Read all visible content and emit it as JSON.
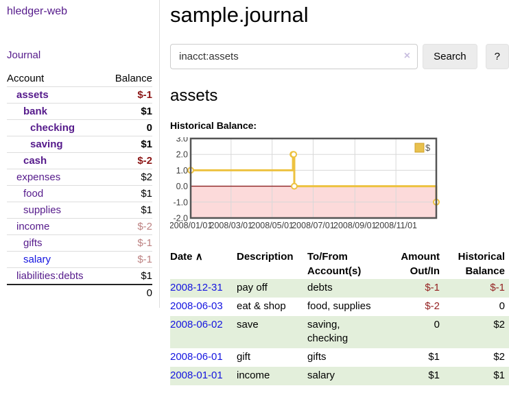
{
  "sidebar": {
    "app_title": "hledger-web",
    "nav": {
      "journal": "Journal"
    },
    "table": {
      "account_header": "Account",
      "balance_header": "Balance",
      "accounts": [
        {
          "name": "assets",
          "balance": "$-1"
        },
        {
          "name": "bank",
          "balance": "$1"
        },
        {
          "name": "checking",
          "balance": "0"
        },
        {
          "name": "saving",
          "balance": "$1"
        },
        {
          "name": "cash",
          "balance": "$-2"
        },
        {
          "name": "expenses",
          "balance": "$2"
        },
        {
          "name": "food",
          "balance": "$1"
        },
        {
          "name": "supplies",
          "balance": "$1"
        },
        {
          "name": "income",
          "balance": "$-2"
        },
        {
          "name": "gifts",
          "balance": "$-1"
        },
        {
          "name": "salary",
          "balance": "$-1"
        },
        {
          "name": "liabilities:debts",
          "balance": "$1"
        }
      ],
      "total": "0"
    }
  },
  "header": {
    "title": "sample.journal"
  },
  "search": {
    "query": "inacct:assets",
    "clear_icon": "×",
    "button": "Search",
    "help_button": "?"
  },
  "account_page": {
    "title": "assets",
    "chart_label": "Historical Balance:"
  },
  "chart_data": {
    "type": "line",
    "steps": true,
    "title": "Historical Balance",
    "series": [
      {
        "name": "$",
        "color": "#EDC240",
        "points": [
          [
            "2008-01-01",
            1
          ],
          [
            "2008-06-01",
            2
          ],
          [
            "2008-06-02",
            2
          ],
          [
            "2008-06-03",
            0
          ],
          [
            "2008-12-31",
            -1
          ]
        ]
      }
    ],
    "x_range": [
      "2008-01-01",
      "2008-12-31"
    ],
    "ylim": [
      -2,
      3
    ],
    "x_ticks": [
      "2008/01/01",
      "2008/03/01",
      "2008/05/01",
      "2008/07/01",
      "2008/09/01",
      "2008/11/01"
    ],
    "y_ticks": [
      "3.0",
      "2.0",
      "1.0",
      "0.0",
      "-1.0",
      "-2.0"
    ],
    "legend": "$",
    "legend_position": "top-right",
    "grid": true,
    "negative_region_color": "#fcdada",
    "zero_line_color": "#8b2020"
  },
  "register": {
    "headers": {
      "date": "Date",
      "sort_icon": "∧",
      "description": "Description",
      "account": "To/From Account(s)",
      "amount": "Amount Out/In",
      "balance": "Historical Balance"
    },
    "rows": [
      {
        "date": "2008-12-31",
        "description": "pay off",
        "account": "debts",
        "amount": "$-1",
        "balance": "$-1"
      },
      {
        "date": "2008-06-03",
        "description": "eat & shop",
        "account": "food, supplies",
        "amount": "$-2",
        "balance": "0"
      },
      {
        "date": "2008-06-02",
        "description": "save",
        "account": "saving, checking",
        "amount": "0",
        "balance": "$2"
      },
      {
        "date": "2008-06-01",
        "description": "gift",
        "account": "gifts",
        "amount": "$1",
        "balance": "$2"
      },
      {
        "date": "2008-01-01",
        "description": "income",
        "account": "salary",
        "amount": "$1",
        "balance": "$1"
      }
    ]
  },
  "colors": {
    "link_purple": "#551A8B",
    "link_blue": "#1414e0",
    "negative_bold_red": "#8b1515",
    "negative_muted_rose": "#bd8282",
    "negative_table_red": "#931f1f",
    "row_green": "#e3efdb",
    "chart_gold": "#EDC240",
    "chart_border_gray": "#545454"
  }
}
